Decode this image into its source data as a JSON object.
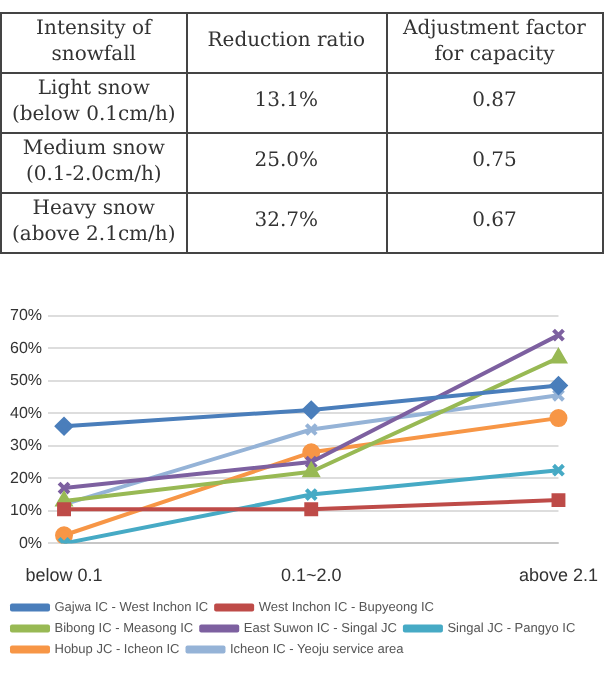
{
  "chart_data": [
    {
      "type": "other",
      "categories": [
        "Intensity of snowfall",
        "Reduction ratio",
        "Adjustment factor for capacity"
      ],
      "y_categories": [
        "Light snow (below 0.1cm/h)",
        "Medium snow (0.1-2.0cm/h)",
        "Heavy snow (above 2.1cm/h)"
      ],
      "cell_labels": [
        [
          "13.1%",
          "0.87"
        ],
        [
          "25.0%",
          "0.75"
        ],
        [
          "32.7%",
          "0.67"
        ]
      ]
    },
    {
      "type": "line",
      "categories": [
        "below 0.1",
        "0.1~2.0",
        "above 2.1"
      ],
      "ylim": [
        0,
        70
      ],
      "yticks": [
        {
          "value": 0,
          "label": "0%"
        },
        {
          "value": 10,
          "label": "10%"
        },
        {
          "value": 20,
          "label": "20%"
        },
        {
          "value": 30,
          "label": "30%"
        },
        {
          "value": 40,
          "label": "40%"
        },
        {
          "value": 50,
          "label": "50%"
        },
        {
          "value": 60,
          "label": "60%"
        },
        {
          "value": 70,
          "label": "70%"
        }
      ],
      "grid": "y",
      "legend": "bottom",
      "series": [
        {
          "name": "Gajwa IC - West Inchon IC",
          "color": "#4a7ebb",
          "marker": "diamond",
          "values": [
            36,
            41,
            48.5
          ]
        },
        {
          "name": "West Inchon IC - Bupyeong IC",
          "color": "#be4b48",
          "marker": "square",
          "values": [
            10.5,
            10.5,
            13.3
          ]
        },
        {
          "name": "Bibong IC - Measong IC",
          "color": "#98b954",
          "marker": "triangle",
          "values": [
            13,
            22,
            57
          ]
        },
        {
          "name": "East Suwon IC - Singal JC",
          "color": "#7d60a0",
          "marker": "cross",
          "values": [
            17,
            25,
            64
          ]
        },
        {
          "name": "Singal JC - Pangyo IC",
          "color": "#46aac5",
          "marker": "cross",
          "values": [
            0,
            15,
            22.5
          ]
        },
        {
          "name": "Hobup JC - Icheon IC",
          "color": "#f79646",
          "marker": "circle",
          "values": [
            2.5,
            28,
            38.5
          ]
        },
        {
          "name": "Icheon IC - Yeoju service area",
          "color": "#95b3d7",
          "marker": "cross",
          "values": [
            12,
            35,
            45.5
          ]
        }
      ]
    }
  ]
}
